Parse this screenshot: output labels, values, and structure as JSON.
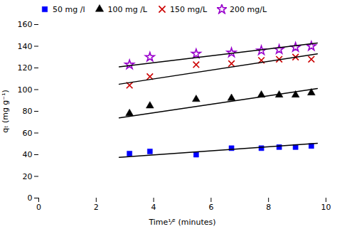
{
  "chart_data": {
    "type": "scatter",
    "xlabel": "Time¹⁄² (minutes)",
    "ylabel": "qₜ (mg g⁻¹)",
    "xlim": [
      0,
      10
    ],
    "ylim": [
      0,
      160
    ],
    "xticks": [
      0,
      2,
      4,
      6,
      8,
      10
    ],
    "yticks": [
      0,
      20,
      40,
      60,
      80,
      100,
      120,
      140,
      160
    ],
    "grid": false,
    "legend": "upper left",
    "series": [
      {
        "name": "50 mg /l",
        "type": "scatter",
        "color": "#0000ff",
        "marker": "square",
        "x": [
          3.16,
          3.87,
          5.48,
          6.71,
          7.75,
          8.37,
          8.94,
          9.49
        ],
        "values": [
          41,
          43,
          40,
          46,
          46,
          47,
          47,
          48
        ]
      },
      {
        "type": "line",
        "color": "#000000",
        "line_style": "solid",
        "x": [
          2.8,
          9.7
        ],
        "values": [
          37.5,
          50.5
        ]
      },
      {
        "name": "100 mg /L",
        "type": "scatter",
        "color": "#000000",
        "marker": "triangle",
        "x": [
          3.16,
          3.87,
          5.48,
          6.71,
          7.75,
          8.37,
          8.94,
          9.49
        ],
        "values": [
          78,
          85,
          91,
          92,
          95,
          95,
          95,
          97
        ]
      },
      {
        "type": "line",
        "color": "#000000",
        "line_style": "solid",
        "x": [
          2.8,
          9.7
        ],
        "values": [
          74.0,
          101.0
        ]
      },
      {
        "name": "150 mg/L",
        "type": "scatter",
        "color": "#cc0000",
        "marker": "x",
        "x": [
          3.16,
          3.87,
          5.48,
          6.71,
          7.75,
          8.37,
          8.94,
          9.49
        ],
        "values": [
          104,
          112,
          123,
          124,
          127,
          128,
          130,
          128
        ]
      },
      {
        "type": "line",
        "color": "#000000",
        "line_style": "solid",
        "x": [
          2.8,
          9.7
        ],
        "values": [
          105.0,
          133.0
        ]
      },
      {
        "name": "200 mg/L",
        "type": "scatter",
        "color": "#9900cc",
        "marker": "star",
        "x": [
          3.16,
          3.87,
          5.48,
          6.71,
          7.75,
          8.37,
          8.94,
          9.49
        ],
        "values": [
          123,
          130,
          133,
          134,
          136,
          137,
          139,
          140
        ]
      },
      {
        "type": "line",
        "color": "#000000",
        "line_style": "solid",
        "x": [
          2.8,
          9.7
        ],
        "values": [
          121.0,
          143.0
        ]
      }
    ]
  }
}
